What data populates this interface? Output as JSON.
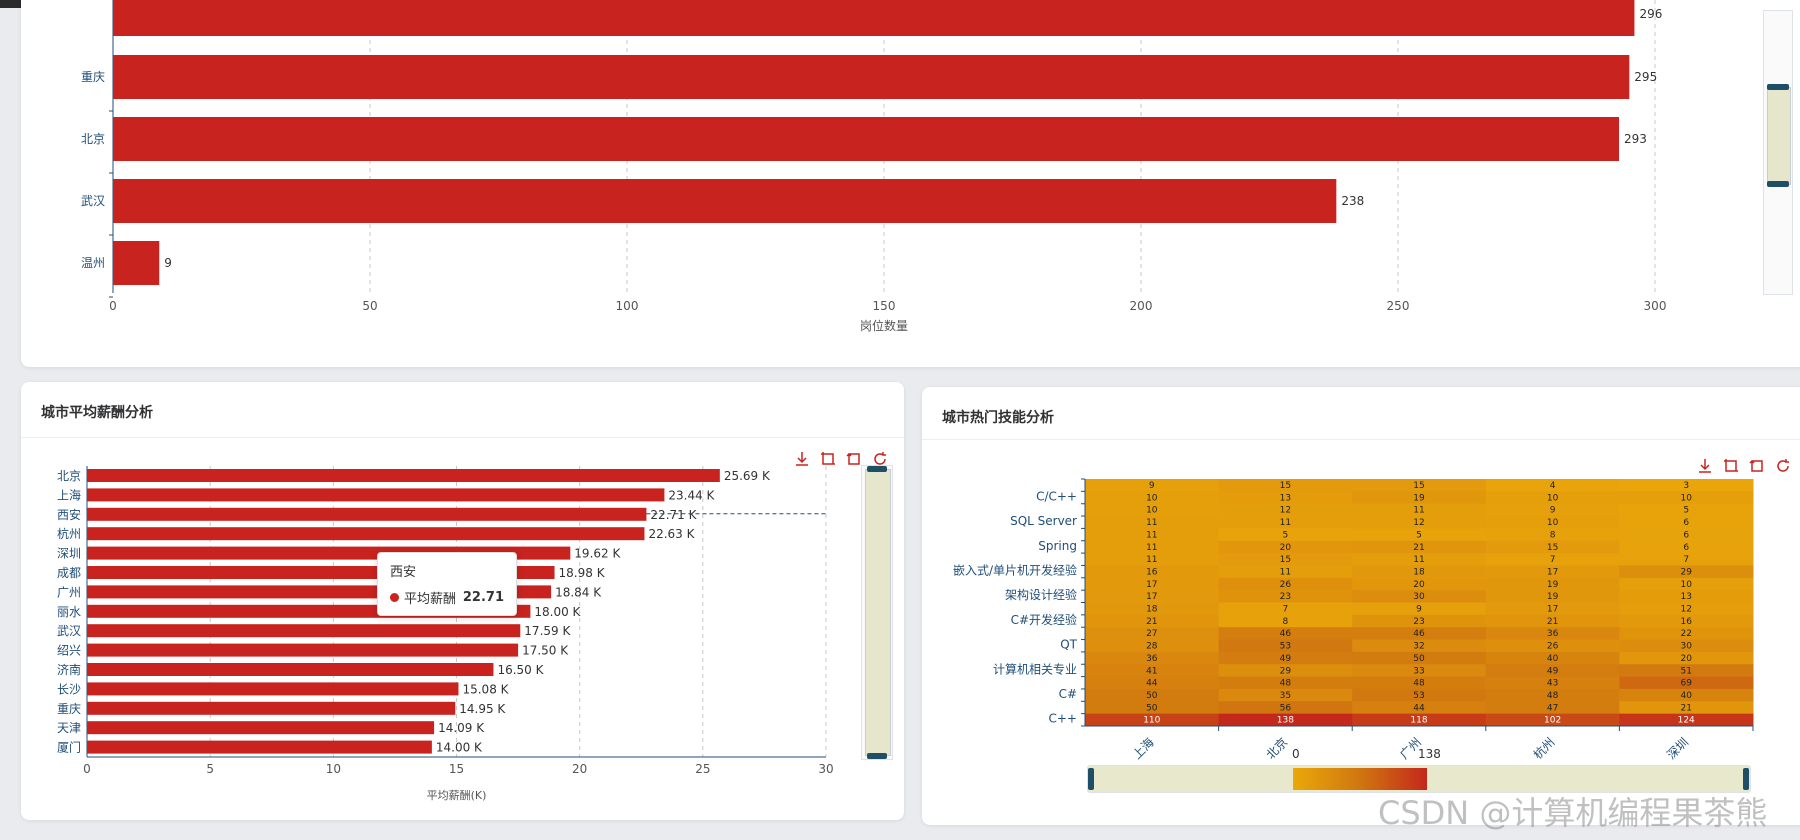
{
  "panels": {
    "top": {
      "xlabel": "岗位数量"
    },
    "salary": {
      "title": "城市平均薪酬分析",
      "xlabel": "平均薪酬(K)"
    },
    "skills": {
      "title": "城市热门技能分析"
    }
  },
  "tooltip": {
    "city": "西安",
    "series": "平均薪酬",
    "value": "22.71"
  },
  "heat_scale": {
    "min": "0",
    "max": "138"
  },
  "watermark": "CSDN @计算机编程果茶熊",
  "colors": {
    "bar": "#c8231e",
    "heat_low": "#eaa80a",
    "heat_mid": "#d07610",
    "heat_high": "#c4281c",
    "axis": "#1f4e79",
    "slider": "#e8e8d0",
    "handle": "#1e4f66"
  },
  "chart_data": [
    {
      "type": "bar",
      "orientation": "horizontal",
      "categories": [
        "重庆",
        "北京",
        "武汉",
        "温州"
      ],
      "values": [
        295,
        293,
        238,
        9
      ],
      "partial_top_value_label": "296",
      "xlabel": "岗位数量",
      "xlim": [
        0,
        300
      ],
      "xticks": [
        0,
        50,
        100,
        150,
        200,
        250,
        300
      ]
    },
    {
      "type": "bar",
      "orientation": "horizontal",
      "title": "城市平均薪酬分析",
      "categories": [
        "北京",
        "上海",
        "西安",
        "杭州",
        "深圳",
        "成都",
        "广州",
        "丽水",
        "武汉",
        "绍兴",
        "济南",
        "长沙",
        "重庆",
        "天津",
        "厦门"
      ],
      "values": [
        25.69,
        23.44,
        22.71,
        22.63,
        19.62,
        18.98,
        18.84,
        18.0,
        17.59,
        17.5,
        16.5,
        15.08,
        14.95,
        14.09,
        14.0
      ],
      "value_labels": [
        "25.69 K",
        "23.44 K",
        "22.71 K",
        "22.63 K",
        "19.62 K",
        "18.98 K",
        "18.84 K",
        "18.00 K",
        "17.59 K",
        "17.50 K",
        "16.50 K",
        "15.08 K",
        "14.95 K",
        "14.09 K",
        "14.00 K"
      ],
      "xlabel": "平均薪酬(K)",
      "xlim": [
        0,
        30
      ],
      "xticks": [
        0,
        5,
        10,
        15,
        20,
        25,
        30
      ]
    },
    {
      "type": "heatmap",
      "title": "城市热门技能分析",
      "x": [
        "上海",
        "北京",
        "广州",
        "杭州",
        "深圳"
      ],
      "y_tick_labels": [
        "C/C++",
        "SQL Server",
        "Spring",
        "嵌入式/单片机开发经验",
        "架构设计经验",
        "C#开发经验",
        "QT",
        "计算机相关专业",
        "C#",
        "C++"
      ],
      "values": [
        [
          9,
          15,
          15,
          4,
          3
        ],
        [
          10,
          13,
          19,
          10,
          10
        ],
        [
          10,
          12,
          11,
          9,
          5
        ],
        [
          11,
          11,
          12,
          10,
          6
        ],
        [
          11,
          5,
          5,
          8,
          6
        ],
        [
          11,
          20,
          21,
          15,
          6
        ],
        [
          11,
          15,
          11,
          7,
          7
        ],
        [
          16,
          11,
          18,
          17,
          29
        ],
        [
          17,
          26,
          20,
          19,
          10
        ],
        [
          17,
          23,
          30,
          19,
          13
        ],
        [
          18,
          7,
          9,
          17,
          12
        ],
        [
          21,
          8,
          23,
          21,
          16
        ],
        [
          27,
          46,
          46,
          36,
          22
        ],
        [
          28,
          53,
          32,
          26,
          30
        ],
        [
          36,
          49,
          50,
          40,
          20
        ],
        [
          41,
          29,
          33,
          49,
          51
        ],
        [
          44,
          48,
          48,
          43,
          69
        ],
        [
          50,
          35,
          53,
          48,
          40
        ],
        [
          50,
          56,
          44,
          47,
          21
        ],
        [
          110,
          138,
          118,
          102,
          124
        ]
      ],
      "visual_map": [
        0,
        138
      ]
    }
  ]
}
